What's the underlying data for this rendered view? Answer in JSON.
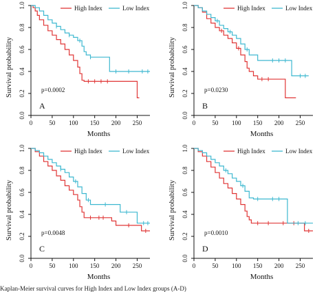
{
  "colors": {
    "high": "#e03535",
    "low": "#3db8d0",
    "axis": "#111111"
  },
  "chart_data": [
    {
      "type": "line",
      "panel": "A",
      "pvalue": "p=0.0002",
      "xlabel": "Months",
      "ylabel": "Survival probability",
      "xlim": [
        0,
        280
      ],
      "ylim": [
        0,
        1.0
      ],
      "xticks": [
        0,
        50,
        100,
        150,
        200,
        250
      ],
      "yticks": [
        0.0,
        0.2,
        0.4,
        0.6,
        0.8,
        1.0
      ],
      "legend": "top-right",
      "series": [
        {
          "name": "High Index",
          "key": "high",
          "x": [
            0,
            5,
            10,
            15,
            20,
            30,
            40,
            50,
            60,
            70,
            80,
            90,
            100,
            110,
            115,
            120,
            125,
            130,
            250,
            255
          ],
          "y": [
            1.0,
            0.98,
            0.95,
            0.91,
            0.87,
            0.82,
            0.77,
            0.73,
            0.69,
            0.65,
            0.6,
            0.55,
            0.5,
            0.44,
            0.38,
            0.32,
            0.31,
            0.31,
            0.16,
            0.16
          ],
          "censor": [
            135,
            150,
            165,
            180
          ]
        },
        {
          "name": "Low Index",
          "key": "low",
          "x": [
            0,
            10,
            20,
            30,
            40,
            50,
            60,
            70,
            80,
            90,
            100,
            110,
            120,
            125,
            130,
            140,
            150,
            160,
            180,
            185,
            250,
            260,
            280
          ],
          "y": [
            1.0,
            0.98,
            0.95,
            0.91,
            0.87,
            0.84,
            0.81,
            0.78,
            0.75,
            0.73,
            0.71,
            0.68,
            0.63,
            0.58,
            0.55,
            0.53,
            0.53,
            0.53,
            0.53,
            0.4,
            0.4,
            0.4,
            0.4
          ],
          "censor": [
            60,
            90,
            115,
            140,
            200,
            230,
            262,
            275
          ]
        }
      ]
    },
    {
      "type": "line",
      "panel": "B",
      "pvalue": "p=0.0230",
      "xlabel": "Months",
      "ylabel": "Survival probability",
      "xlim": [
        0,
        280
      ],
      "ylim": [
        0,
        1.0
      ],
      "xticks": [
        0,
        50,
        100,
        150,
        200,
        250
      ],
      "yticks": [
        0.0,
        0.2,
        0.4,
        0.6,
        0.8,
        1.0
      ],
      "legend": "top-right",
      "series": [
        {
          "name": "High Index",
          "key": "high",
          "x": [
            0,
            10,
            20,
            30,
            40,
            50,
            60,
            70,
            80,
            90,
            100,
            110,
            120,
            125,
            130,
            140,
            150,
            160,
            215,
            220,
            240
          ],
          "y": [
            1.0,
            0.98,
            0.94,
            0.88,
            0.84,
            0.8,
            0.77,
            0.73,
            0.7,
            0.66,
            0.61,
            0.55,
            0.49,
            0.43,
            0.4,
            0.36,
            0.33,
            0.33,
            0.16,
            0.16,
            0.16
          ],
          "censor": [
            65,
            105,
            160,
            175
          ]
        },
        {
          "name": "Low Index",
          "key": "low",
          "x": [
            0,
            10,
            20,
            30,
            40,
            50,
            60,
            70,
            80,
            90,
            100,
            110,
            120,
            130,
            150,
            160,
            230,
            240,
            270
          ],
          "y": [
            1.0,
            0.98,
            0.95,
            0.92,
            0.89,
            0.86,
            0.82,
            0.79,
            0.76,
            0.73,
            0.7,
            0.65,
            0.6,
            0.55,
            0.5,
            0.5,
            0.36,
            0.36,
            0.36
          ],
          "censor": [
            55,
            85,
            125,
            185,
            200,
            215,
            250,
            262
          ]
        }
      ]
    },
    {
      "type": "line",
      "panel": "C",
      "pvalue": "p=0.0048",
      "xlabel": "Months",
      "ylabel": "Survival probability",
      "xlim": [
        0,
        280
      ],
      "ylim": [
        0,
        1.0
      ],
      "xticks": [
        0,
        50,
        100,
        150,
        200,
        250
      ],
      "yticks": [
        0.0,
        0.2,
        0.4,
        0.6,
        0.8,
        1.0
      ],
      "legend": "top-right",
      "series": [
        {
          "name": "High Index",
          "key": "high",
          "x": [
            0,
            10,
            20,
            30,
            40,
            50,
            60,
            70,
            80,
            90,
            100,
            110,
            115,
            120,
            125,
            130,
            180,
            190,
            200,
            260,
            280
          ],
          "y": [
            1.0,
            0.97,
            0.93,
            0.88,
            0.84,
            0.8,
            0.75,
            0.71,
            0.66,
            0.62,
            0.58,
            0.53,
            0.47,
            0.42,
            0.37,
            0.37,
            0.37,
            0.34,
            0.3,
            0.25,
            0.25
          ],
          "censor": [
            140,
            160,
            170,
            230,
            270
          ]
        },
        {
          "name": "Low Index",
          "key": "low",
          "x": [
            0,
            10,
            20,
            30,
            40,
            50,
            60,
            70,
            80,
            90,
            100,
            110,
            120,
            130,
            140,
            150,
            160,
            200,
            210,
            250,
            260,
            280
          ],
          "y": [
            1.0,
            0.98,
            0.96,
            0.93,
            0.9,
            0.87,
            0.84,
            0.81,
            0.78,
            0.74,
            0.7,
            0.65,
            0.59,
            0.53,
            0.49,
            0.49,
            0.49,
            0.49,
            0.42,
            0.32,
            0.32,
            0.32
          ],
          "censor": [
            70,
            105,
            135,
            175,
            225,
            265,
            275
          ]
        }
      ]
    },
    {
      "type": "line",
      "panel": "D",
      "pvalue": "p=0.0010",
      "xlabel": "Months",
      "ylabel": "Survival probability",
      "xlim": [
        0,
        280
      ],
      "ylim": [
        0,
        1.0
      ],
      "xticks": [
        0,
        50,
        100,
        150,
        200,
        250
      ],
      "yticks": [
        0.0,
        0.2,
        0.4,
        0.6,
        0.8,
        1.0
      ],
      "legend": "top-right",
      "series": [
        {
          "name": "High Index",
          "key": "high",
          "x": [
            0,
            10,
            20,
            30,
            40,
            50,
            60,
            70,
            80,
            90,
            100,
            110,
            120,
            125,
            130,
            135,
            250,
            260,
            280
          ],
          "y": [
            1.0,
            0.97,
            0.93,
            0.88,
            0.83,
            0.78,
            0.73,
            0.68,
            0.64,
            0.59,
            0.54,
            0.49,
            0.43,
            0.38,
            0.35,
            0.32,
            0.32,
            0.25,
            0.25
          ],
          "censor": [
            150,
            175,
            210,
            235,
            270
          ]
        },
        {
          "name": "Low Index",
          "key": "low",
          "x": [
            0,
            10,
            20,
            30,
            40,
            50,
            60,
            70,
            80,
            90,
            100,
            110,
            120,
            130,
            140,
            160,
            210,
            220,
            240,
            270,
            280
          ],
          "y": [
            1.0,
            0.98,
            0.96,
            0.93,
            0.9,
            0.87,
            0.84,
            0.8,
            0.77,
            0.73,
            0.7,
            0.66,
            0.61,
            0.55,
            0.54,
            0.54,
            0.54,
            0.32,
            0.32,
            0.32,
            0.32
          ],
          "censor": [
            75,
            115,
            150,
            185,
            200,
            245,
            262
          ]
        }
      ]
    }
  ],
  "caption": "Kaplan-Meier survival curves for High Index and Low Index groups (A-D)"
}
